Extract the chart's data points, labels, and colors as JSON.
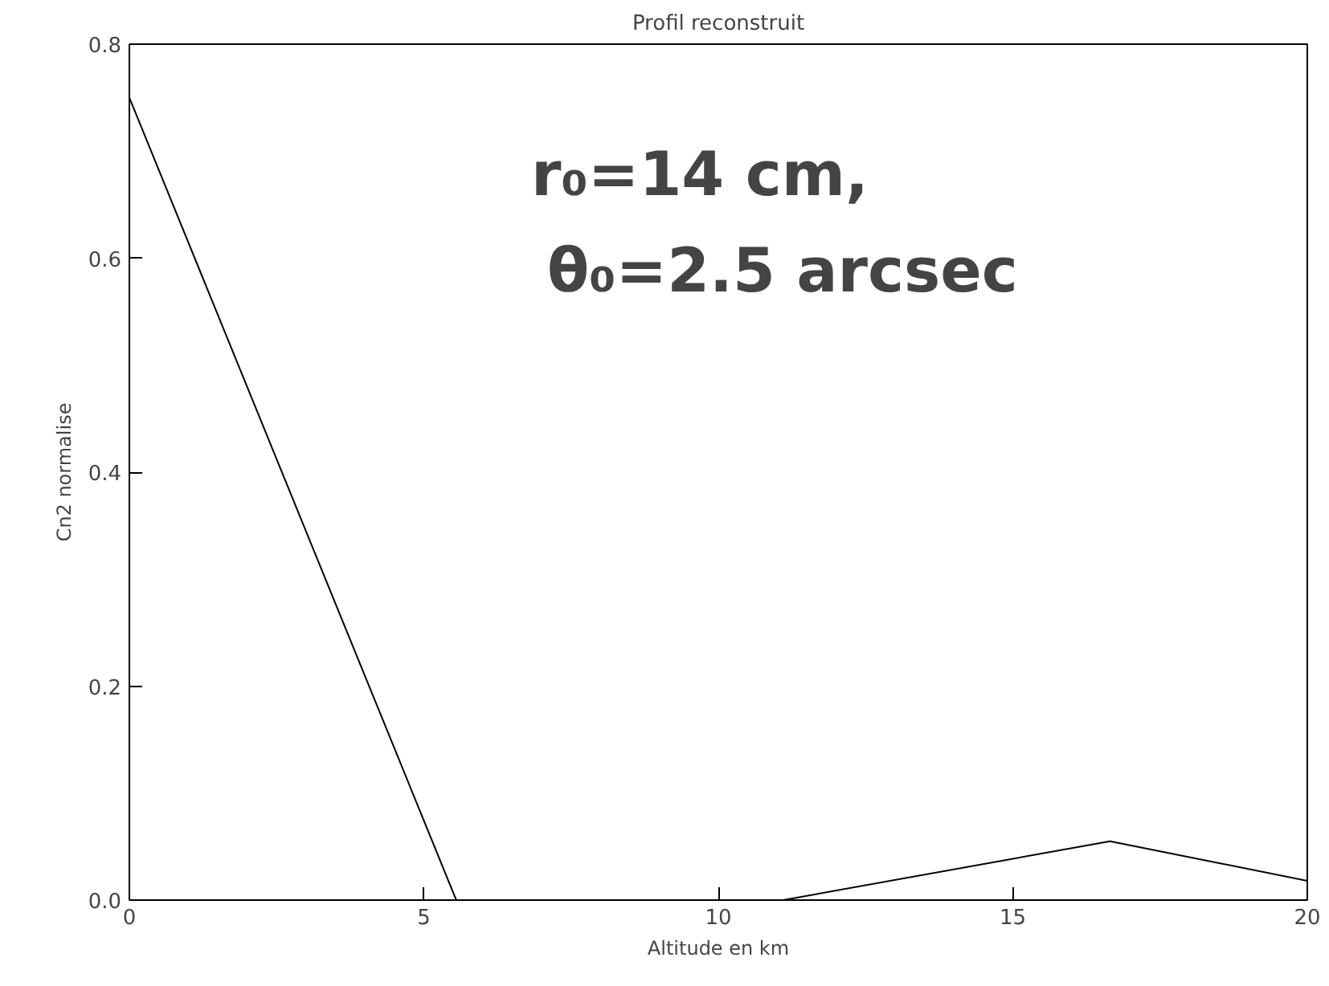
{
  "chart_data": {
    "type": "line",
    "title": "Profil reconstruit",
    "xlabel": "Altitude en km",
    "ylabel": "Cn2 normalise",
    "x": [
      0,
      5.55,
      11.1,
      16.65,
      20
    ],
    "series": [
      {
        "color": "#000000",
        "values": [
          0.75,
          0,
          0,
          0.055,
          0.018
        ]
      }
    ],
    "xlim": [
      0,
      20
    ],
    "xticks": [
      0,
      5,
      10,
      15,
      20
    ],
    "ylim": [
      0,
      0.8
    ],
    "yticks": [
      {
        "value": 0,
        "label": "0.0"
      },
      0.2,
      0.4,
      0.6,
      0.8
    ],
    "annotations": [
      "r₀=14 cm,",
      "θ₀=2.5 arcsec"
    ],
    "grid": false,
    "marker": "none",
    "line_style": "solid"
  }
}
